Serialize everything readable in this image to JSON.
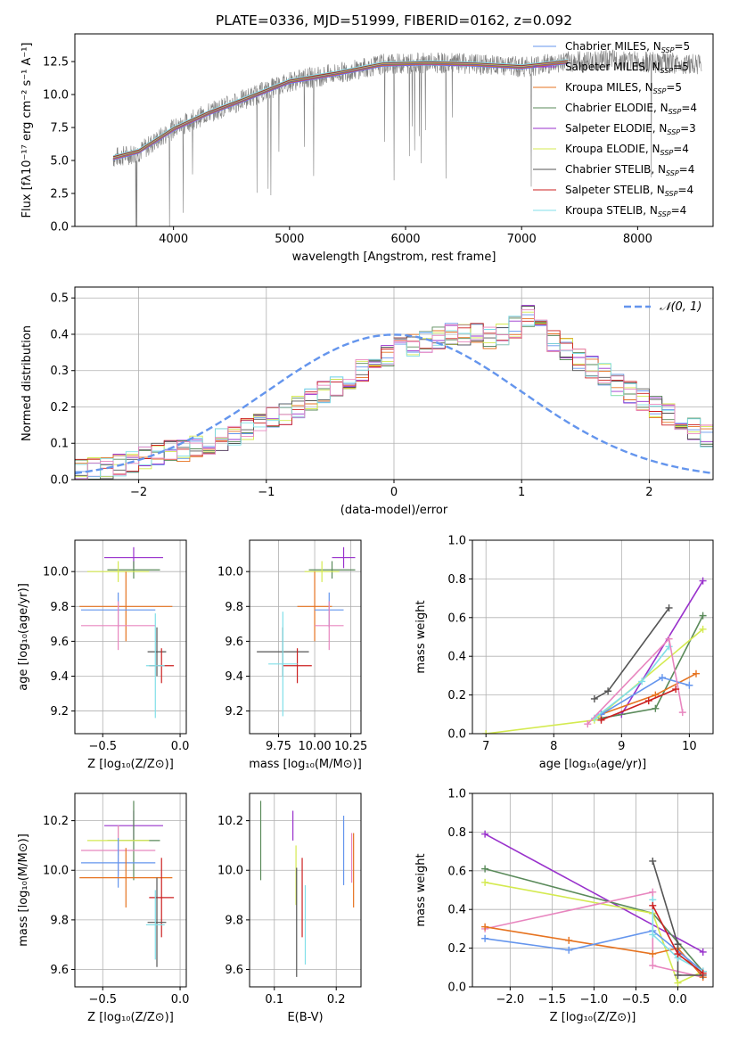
{
  "colors": {
    "chabrier_miles": "#6495ed",
    "salpeter_miles": "#9932cc",
    "kroupa_miles": "#e67320",
    "chabrier_elodie": "#5a8a5a",
    "salpeter_elodie": "#9932cc",
    "kroupa_elodie": "#d4ea50",
    "chabrier_stelib": "#555555",
    "salpeter_stelib": "#cc2020",
    "kroupa_stelib": "#80dfe8",
    "pink": "#e886bf",
    "data": "#808080",
    "normal": "#6495ed"
  },
  "chart_data": [
    {
      "id": "spectrum",
      "type": "line",
      "title": "PLATE=0336, MJD=51999, FIBERID=0162, z=0.092",
      "xlabel": "wavelength [Angstrom, rest frame]",
      "ylabel": "Flux [fλ10⁻¹⁷ erg cm⁻² s⁻¹ A⁻¹]",
      "xlim": [
        3150,
        8650
      ],
      "ylim": [
        0,
        14.6
      ],
      "xticks": [
        "4000",
        "5000",
        "6000",
        "7000",
        "8000"
      ],
      "yticks": [
        "0.0",
        "2.5",
        "5.0",
        "7.5",
        "10.0",
        "12.5"
      ],
      "continuum_x": [
        3480,
        3700,
        4000,
        4300,
        4600,
        5000,
        5400,
        5800,
        6200,
        6600,
        7000,
        7400
      ],
      "continuum_y": [
        5.2,
        5.7,
        7.4,
        8.6,
        9.6,
        11.0,
        11.6,
        12.3,
        12.4,
        12.3,
        12.1,
        12.5
      ],
      "data_x": [
        3480,
        3700,
        4000,
        4300,
        4600,
        5000,
        5400,
        5800,
        6200,
        6600,
        7000,
        7400,
        7800,
        8200,
        8550
      ],
      "data_y": [
        5.2,
        5.6,
        7.4,
        8.6,
        9.6,
        11.0,
        11.6,
        12.3,
        12.4,
        12.3,
        12.1,
        12.5,
        12.6,
        12.4,
        12.3
      ],
      "legend": [
        {
          "label": "Chabrier MILES, N",
          "sub": "SSP",
          "n": "=5",
          "color": "#6495ed"
        },
        {
          "label": "Salpeter MILES, N",
          "sub": "SSP",
          "n": "=5",
          "color": "#9932cc"
        },
        {
          "label": "Kroupa MILES, N",
          "sub": "SSP",
          "n": "=5",
          "color": "#e67320"
        },
        {
          "label": "Chabrier ELODIE, N",
          "sub": "SSP",
          "n": "=4",
          "color": "#5a8a5a"
        },
        {
          "label": "Salpeter ELODIE, N",
          "sub": "SSP",
          "n": "=3",
          "color": "#9932cc"
        },
        {
          "label": "Kroupa ELODIE, N",
          "sub": "SSP",
          "n": "=4",
          "color": "#d4ea50"
        },
        {
          "label": "Chabrier STELIB, N",
          "sub": "SSP",
          "n": "=4",
          "color": "#555555"
        },
        {
          "label": "Salpeter STELIB, N",
          "sub": "SSP",
          "n": "=4",
          "color": "#cc2020"
        },
        {
          "label": "Kroupa STELIB, N",
          "sub": "SSP",
          "n": "=4",
          "color": "#80dfe8"
        }
      ]
    },
    {
      "id": "residuals",
      "type": "histogram",
      "xlabel": "(data-model)/error",
      "ylabel": "Normed distribution",
      "xlim": [
        -2.5,
        2.5
      ],
      "ylim": [
        0,
        0.53
      ],
      "xticks": [
        "−2",
        "−1",
        "0",
        "1",
        "2"
      ],
      "yticks": [
        "0.0",
        "0.1",
        "0.2",
        "0.3",
        "0.4",
        "0.5"
      ],
      "legend": "𝒩(0, 1)",
      "bin_width": 0.1,
      "bin_start": -2.5,
      "heights": [
        0.03,
        0.03,
        0.03,
        0.04,
        0.05,
        0.06,
        0.07,
        0.08,
        0.08,
        0.09,
        0.1,
        0.11,
        0.12,
        0.14,
        0.15,
        0.17,
        0.18,
        0.2,
        0.22,
        0.24,
        0.26,
        0.28,
        0.3,
        0.32,
        0.34,
        0.36,
        0.37,
        0.38,
        0.39,
        0.4,
        0.4,
        0.4,
        0.39,
        0.4,
        0.42,
        0.45,
        0.42,
        0.38,
        0.36,
        0.33,
        0.31,
        0.29,
        0.26,
        0.24,
        0.22,
        0.2,
        0.18,
        0.16,
        0.14,
        0.12,
        0.1,
        0.09,
        0.08,
        0.07,
        0.06,
        0.05,
        0.04,
        0.04,
        0.03,
        0.03
      ]
    },
    {
      "id": "age-vs-Z",
      "type": "errorbar",
      "xlabel": "Z [log₁₀(Z/Z⊙)]",
      "ylabel": "age  [log₁₀(age/yr)]",
      "xlim": [
        -0.68,
        0.04
      ],
      "ylim": [
        9.07,
        10.18
      ],
      "xticks": [
        "−0.5",
        "0.0"
      ],
      "yticks": [
        "9.2",
        "9.4",
        "9.6",
        "9.8",
        "10.0"
      ],
      "points": [
        {
          "x": -0.3,
          "y": 10.08,
          "xerr": 0.19,
          "yerr": 0.06,
          "color": "#9932cc"
        },
        {
          "x": -0.3,
          "y": 10.01,
          "xerr": 0.17,
          "yerr": 0.05,
          "color": "#5a8a5a"
        },
        {
          "x": -0.4,
          "y": 10.0,
          "xerr": 0.2,
          "yerr": 0.06,
          "color": "#d4ea50"
        },
        {
          "x": -0.35,
          "y": 9.8,
          "xerr": 0.3,
          "yerr": 0.2,
          "color": "#e67320"
        },
        {
          "x": -0.4,
          "y": 9.78,
          "xerr": 0.24,
          "yerr": 0.1,
          "color": "#6495ed"
        },
        {
          "x": -0.4,
          "y": 9.69,
          "xerr": 0.24,
          "yerr": 0.14,
          "color": "#e886bf"
        },
        {
          "x": -0.15,
          "y": 9.54,
          "xerr": 0.06,
          "yerr": 0.14,
          "color": "#555555"
        },
        {
          "x": -0.12,
          "y": 9.46,
          "xerr": 0.08,
          "yerr": 0.1,
          "color": "#cc2020"
        },
        {
          "x": -0.16,
          "y": 9.46,
          "xerr": 0.06,
          "yerr": 0.3,
          "color": "#80dfe8"
        }
      ]
    },
    {
      "id": "age-vs-mass",
      "type": "errorbar",
      "xlabel": "mass [log₁₀(M/M⊙)]",
      "ylabel": "",
      "xlim": [
        9.55,
        10.32
      ],
      "ylim": [
        9.07,
        10.18
      ],
      "xticks": [
        "9.75",
        "10.00",
        "10.25"
      ],
      "yticks": [
        "9.2",
        "9.4",
        "9.6",
        "9.8",
        "10.0"
      ],
      "points": [
        {
          "x": 10.2,
          "y": 10.08,
          "xerr": 0.08,
          "yerr": 0.06,
          "color": "#9932cc"
        },
        {
          "x": 10.12,
          "y": 10.01,
          "xerr": 0.16,
          "yerr": 0.05,
          "color": "#5a8a5a"
        },
        {
          "x": 10.05,
          "y": 10.0,
          "xerr": 0.12,
          "yerr": 0.06,
          "color": "#d4ea50"
        },
        {
          "x": 10.0,
          "y": 9.8,
          "xerr": 0.12,
          "yerr": 0.2,
          "color": "#e67320"
        },
        {
          "x": 10.1,
          "y": 9.78,
          "xerr": 0.1,
          "yerr": 0.1,
          "color": "#6495ed"
        },
        {
          "x": 10.1,
          "y": 9.69,
          "xerr": 0.1,
          "yerr": 0.14,
          "color": "#e886bf"
        },
        {
          "x": 9.78,
          "y": 9.54,
          "xerr": 0.18,
          "yerr": 0.14,
          "color": "#555555"
        },
        {
          "x": 9.88,
          "y": 9.46,
          "xerr": 0.1,
          "yerr": 0.1,
          "color": "#cc2020"
        },
        {
          "x": 9.78,
          "y": 9.47,
          "xerr": 0.1,
          "yerr": 0.3,
          "color": "#80dfe8"
        }
      ]
    },
    {
      "id": "weight-vs-age",
      "type": "line",
      "xlabel": "age  [log₁₀(age/yr)]",
      "ylabel": "mass weight",
      "xlim": [
        6.8,
        10.35
      ],
      "ylim": [
        0,
        1.0
      ],
      "xticks": [
        "7",
        "8",
        "9",
        "10"
      ],
      "yticks": [
        "0.0",
        "0.2",
        "0.4",
        "0.6",
        "0.8",
        "1.0"
      ],
      "series": [
        {
          "color": "#9932cc",
          "x": [
            8.7,
            9.0,
            10.2
          ],
          "y": [
            0.08,
            0.1,
            0.79
          ]
        },
        {
          "color": "#5a8a5a",
          "x": [
            8.7,
            9.5,
            10.2
          ],
          "y": [
            0.08,
            0.13,
            0.61
          ]
        },
        {
          "color": "#555555",
          "x": [
            8.6,
            8.8,
            9.7
          ],
          "y": [
            0.18,
            0.22,
            0.65
          ]
        },
        {
          "color": "#d4ea50",
          "x": [
            7.0,
            8.6,
            10.2
          ],
          "y": [
            0.0,
            0.07,
            0.54
          ]
        },
        {
          "color": "#e67320",
          "x": [
            8.7,
            9.5,
            10.1
          ],
          "y": [
            0.1,
            0.2,
            0.31
          ]
        },
        {
          "color": "#6495ed",
          "x": [
            8.7,
            9.6,
            10.0
          ],
          "y": [
            0.1,
            0.29,
            0.25
          ]
        },
        {
          "color": "#80dfe8",
          "x": [
            8.6,
            9.3,
            9.7
          ],
          "y": [
            0.08,
            0.27,
            0.45
          ]
        },
        {
          "color": "#e886bf",
          "x": [
            8.5,
            9.7,
            9.9
          ],
          "y": [
            0.05,
            0.49,
            0.11
          ]
        },
        {
          "color": "#cc2020",
          "x": [
            8.7,
            9.4,
            9.8
          ],
          "y": [
            0.07,
            0.17,
            0.23
          ]
        }
      ]
    },
    {
      "id": "mass-vs-Z",
      "type": "errorbar",
      "xlabel": "Z [log₁₀(Z/Z⊙)]",
      "ylabel": "mass [log₁₀(M/M⊙)]",
      "xlim": [
        -0.68,
        0.04
      ],
      "ylim": [
        9.53,
        10.31
      ],
      "xticks": [
        "−0.5",
        "0.0"
      ],
      "yticks": [
        "9.6",
        "9.8",
        "10.0",
        "10.2"
      ],
      "points": [
        {
          "x": -0.3,
          "y": 10.18,
          "xerr": 0.19,
          "yerr": 0.06,
          "color": "#9932cc"
        },
        {
          "x": -0.3,
          "y": 10.12,
          "xerr": 0.17,
          "yerr": 0.16,
          "color": "#5a8a5a"
        },
        {
          "x": -0.4,
          "y": 10.12,
          "xerr": 0.2,
          "yerr": 0.06,
          "color": "#d4ea50"
        },
        {
          "x": -0.4,
          "y": 10.08,
          "xerr": 0.24,
          "yerr": 0.1,
          "color": "#e886bf"
        },
        {
          "x": -0.4,
          "y": 10.03,
          "xerr": 0.24,
          "yerr": 0.1,
          "color": "#6495ed"
        },
        {
          "x": -0.35,
          "y": 9.97,
          "xerr": 0.3,
          "yerr": 0.12,
          "color": "#e67320"
        },
        {
          "x": -0.12,
          "y": 9.89,
          "xerr": 0.08,
          "yerr": 0.16,
          "color": "#cc2020"
        },
        {
          "x": -0.15,
          "y": 9.79,
          "xerr": 0.06,
          "yerr": 0.18,
          "color": "#555555"
        },
        {
          "x": -0.16,
          "y": 9.78,
          "xerr": 0.06,
          "yerr": 0.14,
          "color": "#80dfe8"
        }
      ]
    },
    {
      "id": "mass-vs-ebv",
      "type": "errorbar",
      "xlabel": "E(B-V)",
      "ylabel": "",
      "xlim": [
        0.06,
        0.24
      ],
      "ylim": [
        9.53,
        10.31
      ],
      "xticks": [
        "0.1",
        "0.2"
      ],
      "yticks": [
        "9.6",
        "9.8",
        "10.0",
        "10.2"
      ],
      "points": [
        {
          "x": 0.078,
          "y": 10.12,
          "xerr": 0,
          "yerr": 0.16,
          "color": "#5a8a5a"
        },
        {
          "x": 0.13,
          "y": 10.18,
          "xerr": 0,
          "yerr": 0.06,
          "color": "#9932cc"
        },
        {
          "x": 0.135,
          "y": 9.98,
          "xerr": 0,
          "yerr": 0.12,
          "color": "#d4ea50"
        },
        {
          "x": 0.136,
          "y": 9.79,
          "xerr": 0,
          "yerr": 0.22,
          "color": "#555555"
        },
        {
          "x": 0.145,
          "y": 9.89,
          "xerr": 0,
          "yerr": 0.16,
          "color": "#cc2020"
        },
        {
          "x": 0.15,
          "y": 9.78,
          "xerr": 0,
          "yerr": 0.16,
          "color": "#80dfe8"
        },
        {
          "x": 0.212,
          "y": 10.08,
          "xerr": 0,
          "yerr": 0.14,
          "color": "#6495ed"
        },
        {
          "x": 0.225,
          "y": 10.05,
          "xerr": 0,
          "yerr": 0.1,
          "color": "#e886bf"
        },
        {
          "x": 0.228,
          "y": 10.0,
          "xerr": 0,
          "yerr": 0.15,
          "color": "#e67320"
        }
      ]
    },
    {
      "id": "weight-vs-Z",
      "type": "line",
      "xlabel": "Z [log₁₀(Z/Z⊙)]",
      "ylabel": "mass weight",
      "xlim": [
        -2.45,
        0.42
      ],
      "ylim": [
        0,
        1.0
      ],
      "xticks": [
        "−2.0",
        "−1.5",
        "−1.0",
        "−0.5",
        "0.0"
      ],
      "yticks": [
        "0.0",
        "0.2",
        "0.4",
        "0.6",
        "0.8",
        "1.0"
      ],
      "series": [
        {
          "color": "#9932cc",
          "x": [
            -2.3,
            0.3
          ],
          "y": [
            0.79,
            0.18
          ]
        },
        {
          "color": "#5a8a5a",
          "x": [
            -2.3,
            -0.3,
            0.3
          ],
          "y": [
            0.61,
            0.38,
            0.08
          ]
        },
        {
          "color": "#d4ea50",
          "x": [
            -2.3,
            -0.3,
            0.0,
            0.3
          ],
          "y": [
            0.54,
            0.38,
            0.02,
            0.08
          ]
        },
        {
          "color": "#e886bf",
          "x": [
            -2.3,
            -0.3,
            -0.3,
            0.3
          ],
          "y": [
            0.3,
            0.49,
            0.11,
            0.05
          ]
        },
        {
          "color": "#e67320",
          "x": [
            -2.3,
            -1.3,
            -0.3,
            0.0,
            0.3
          ],
          "y": [
            0.31,
            0.24,
            0.17,
            0.2,
            0.05
          ]
        },
        {
          "color": "#6495ed",
          "x": [
            -2.3,
            -1.3,
            -0.3,
            0.3
          ],
          "y": [
            0.25,
            0.19,
            0.29,
            0.08
          ]
        },
        {
          "color": "#555555",
          "x": [
            -0.3,
            0.0,
            0.0,
            0.3
          ],
          "y": [
            0.65,
            0.22,
            0.06,
            0.06
          ]
        },
        {
          "color": "#80dfe8",
          "x": [
            -0.3,
            -0.3,
            0.0,
            0.3
          ],
          "y": [
            0.45,
            0.27,
            0.15,
            0.08
          ]
        },
        {
          "color": "#cc2020",
          "x": [
            -0.3,
            0.0,
            0.3
          ],
          "y": [
            0.42,
            0.17,
            0.07
          ]
        }
      ]
    }
  ]
}
